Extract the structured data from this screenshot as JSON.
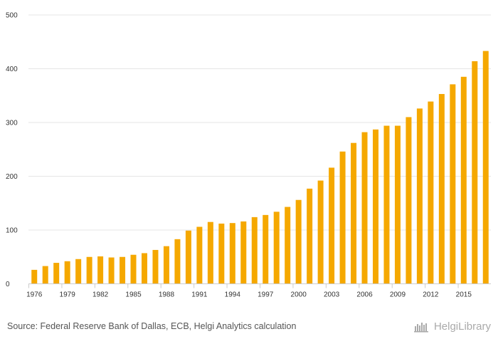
{
  "chart_data": {
    "type": "bar",
    "title": "",
    "xlabel": "",
    "ylabel": "",
    "ylim": [
      0,
      500
    ],
    "yticks": [
      0,
      100,
      200,
      300,
      400,
      500
    ],
    "grid": true,
    "bar_color": "#f5a800",
    "categories": [
      "1976",
      "1977",
      "1978",
      "1979",
      "1980",
      "1981",
      "1982",
      "1983",
      "1984",
      "1985",
      "1986",
      "1987",
      "1988",
      "1989",
      "1990",
      "1991",
      "1992",
      "1993",
      "1994",
      "1995",
      "1996",
      "1997",
      "1998",
      "1999",
      "2000",
      "2001",
      "2002",
      "2003",
      "2004",
      "2005",
      "2006",
      "2007",
      "2008",
      "2009",
      "2010",
      "2011",
      "2012",
      "2013",
      "2014",
      "2015",
      "2016",
      "2017"
    ],
    "tick_labels": [
      "1976",
      "1979",
      "1982",
      "1985",
      "1988",
      "1991",
      "1994",
      "1997",
      "2000",
      "2003",
      "2006",
      "2009",
      "2012",
      "2015"
    ],
    "values": [
      26,
      33,
      39,
      42,
      46,
      50,
      51,
      49,
      50,
      54,
      57,
      63,
      70,
      83,
      99,
      106,
      115,
      112,
      113,
      116,
      124,
      128,
      134,
      143,
      156,
      177,
      192,
      216,
      246,
      262,
      282,
      287,
      294,
      294,
      310,
      326,
      339,
      353,
      371,
      385,
      414,
      433
    ]
  },
  "footer": {
    "source": "Source: Federal Reserve Bank of Dallas, ECB, Helgi Analytics calculation",
    "brand_name": "HelgiLibrary",
    "brand_icon": "helgi-logo-icon",
    "brand_color": "#aaaaaa"
  }
}
